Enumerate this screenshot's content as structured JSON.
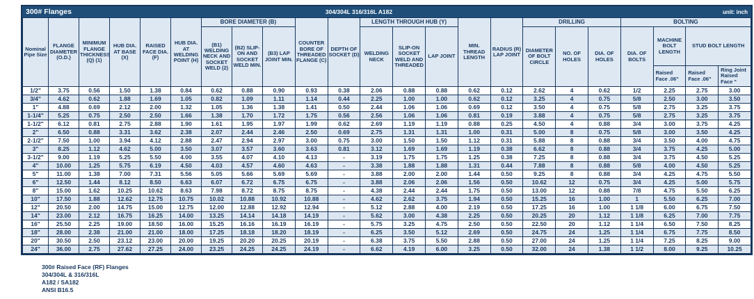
{
  "title_bar": {
    "title": "300# Flanges",
    "material": "304/304L 316/316L A182",
    "unit": "unit: inch"
  },
  "groups": {
    "bore": "BORE DIAMETER (B)",
    "hub": "LENGTH THROUGH HUB (Y)",
    "drilling": "DRILLING",
    "bolting": "BOLTING"
  },
  "columns": {
    "nominal": "Nominal Pipe Size",
    "od": "FLANGE DIAMETER (O.D.)",
    "q": "MINIMUM FLANGE THICKNESS (Q) (1)",
    "x": "HUB DIA. AT BASE (X)",
    "f": "RAISED FACE DIA. (F)",
    "h": "HUB DIA. AT WELDING POINT (H)",
    "b1": "(B1) WELDING NECK AND SOCKET WELD (2)",
    "b2": "(B2) SLIP-ON AND SOCKET WELD MIN.",
    "b3": "(B3) LAP JOINT MIN.",
    "c": "COUNTER BORE OF THREADED FLANGE (C)",
    "d": "DEPTH OF SOCKET (D)",
    "welding_neck": "WELDING NECK",
    "slip_on": "SLIP-ON SOCKET WELD AND THREADED",
    "lap_joint": "LAP JOINT",
    "min_thread": "MIN. THREAD LENGTH",
    "radius": "RADIUS (R) LAP JOINT",
    "bolt_circle": "DIAMETER OF BOLT CIRCLE",
    "no_holes": "NO. OF HOLES",
    "dia_holes": "DIA. OF HOLES",
    "dia_bolts": "DIA. OF BOLTS",
    "machine_bolt_length": "MACHINE BOLT LENGTH",
    "stud_bolt_length": "STUD BOLT LENGTH",
    "mbl_raised_face": "Raised Face .06\"",
    "sbl_raised_face": "Raised Face .06\"",
    "sbl_ring_joint": "Ring Joint Raised Face \""
  },
  "rows": [
    [
      "1/2\"",
      "3.75",
      "0.56",
      "1.50",
      "1.38",
      "0.84",
      "0.62",
      "0.88",
      "0.90",
      "0.93",
      "0.38",
      "2.06",
      "0.88",
      "0.88",
      "0.62",
      "0.12",
      "2.62",
      "4",
      "0.62",
      "1/2",
      "2.25",
      "2.75",
      "3.00"
    ],
    [
      "3/4\"",
      "4.62",
      "0.62",
      "1.88",
      "1.69",
      "1.05",
      "0.82",
      "1.09",
      "1.11",
      "1.14",
      "0.44",
      "2.25",
      "1.00",
      "1.00",
      "0.62",
      "0.12",
      "3.25",
      "4",
      "0.75",
      "5/8",
      "2.50",
      "3.00",
      "3.50"
    ],
    [
      "1\"",
      "4.88",
      "0.69",
      "2.12",
      "2.00",
      "1.32",
      "1.05",
      "1.36",
      "1.38",
      "1.41",
      "0.50",
      "2.44",
      "1.06",
      "1.06",
      "0.69",
      "0.12",
      "3.50",
      "4",
      "0.75",
      "5/8",
      "2.75",
      "3.25",
      "3.75"
    ],
    [
      "1-1/4\"",
      "5.25",
      "0.75",
      "2.50",
      "2.50",
      "1.66",
      "1.38",
      "1.70",
      "1.72",
      "1.75",
      "0.56",
      "2.56",
      "1.06",
      "1.06",
      "0.81",
      "0.19",
      "3.88",
      "4",
      "0.75",
      "5/8",
      "2.75",
      "3.25",
      "3.75"
    ],
    [
      "1-1/2\"",
      "6.12",
      "0.81",
      "2.75",
      "2.88",
      "1.90",
      "1.61",
      "1.95",
      "1.97",
      "1.99",
      "0.62",
      "2.69",
      "1.19",
      "1.19",
      "0.88",
      "0.25",
      "4.50",
      "4",
      "0.88",
      "3/4",
      "3.00",
      "3.75",
      "4.25"
    ],
    [
      "2\"",
      "6.50",
      "0.88",
      "3.31",
      "3.62",
      "2.38",
      "2.07",
      "2.44",
      "2.46",
      "2.50",
      "0.69",
      "2.75",
      "1.31",
      "1.31",
      "1.00",
      "0.31",
      "5.00",
      "8",
      "0.75",
      "5/8",
      "3.00",
      "3.50",
      "4.25"
    ],
    [
      "2-1/2\"",
      "7.50",
      "1.00",
      "3.94",
      "4.12",
      "2.88",
      "2.47",
      "2.94",
      "2.97",
      "3.00",
      "0.75",
      "3.00",
      "1.50",
      "1.50",
      "1.12",
      "0.31",
      "5.88",
      "8",
      "0.88",
      "3/4",
      "3.50",
      "4.00",
      "4.75"
    ],
    [
      "3\"",
      "8.25",
      "1.12",
      "4.62",
      "5.00",
      "3.50",
      "3.07",
      "3.57",
      "3.60",
      "3.63",
      "0.81",
      "3.12",
      "1.69",
      "1.69",
      "1.19",
      "0.38",
      "6.62",
      "8",
      "0.88",
      "3/4",
      "3.75",
      "4.25",
      "5.00"
    ],
    [
      "3-1/2\"",
      "9.00",
      "1.19",
      "5.25",
      "5.50",
      "4.00",
      "3.55",
      "4.07",
      "4.10",
      "4.13",
      "-",
      "3.19",
      "1.75",
      "1.75",
      "1.25",
      "0.38",
      "7.25",
      "8",
      "0.88",
      "3/4",
      "3.75",
      "4.50",
      "5.25"
    ],
    [
      "4\"",
      "10.00",
      "1.25",
      "5.75",
      "6.19",
      "4.50",
      "4.03",
      "4.57",
      "4.60",
      "4.63",
      "-",
      "3.38",
      "1.88",
      "1.88",
      "1.31",
      "0.44",
      "7.88",
      "8",
      "0.88",
      "5/8",
      "4.00",
      "4.50",
      "5.25"
    ],
    [
      "5\"",
      "11.00",
      "1.38",
      "7.00",
      "7.31",
      "5.56",
      "5.05",
      "5.66",
      "5.69",
      "5.69",
      "-",
      "3.88",
      "2.00",
      "2.00",
      "1.44",
      "0.50",
      "9.25",
      "8",
      "0.88",
      "3/4",
      "4.25",
      "4.75",
      "5.50"
    ],
    [
      "6\"",
      "12.50",
      "1.44",
      "8.12",
      "8.50",
      "6.63",
      "6.07",
      "6.72",
      "6.75",
      "6.75",
      "-",
      "3.88",
      "2.06",
      "2.06",
      "1.56",
      "0.50",
      "10.62",
      "12",
      "0.75",
      "3/4",
      "4.25",
      "5.00",
      "5.75"
    ],
    [
      "8\"",
      "15.00",
      "1.62",
      "10.25",
      "10.62",
      "8.63",
      "7.98",
      "8.72",
      "8.75",
      "8.75",
      "-",
      "4.38",
      "2.44",
      "2.44",
      "1.75",
      "0.50",
      "13.00",
      "12",
      "0.88",
      "7/8",
      "4.75",
      "5.50",
      "6.25"
    ],
    [
      "10\"",
      "17.50",
      "1.88",
      "12.62",
      "12.75",
      "10.75",
      "10.02",
      "10.88",
      "10.92",
      "10.88",
      "-",
      "4.62",
      "2.62",
      "3.75",
      "1.94",
      "0.50",
      "15.25",
      "16",
      "1.00",
      "1",
      "5.50",
      "6.25",
      "7.00"
    ],
    [
      "12\"",
      "20.50",
      "2.00",
      "14.75",
      "15.00",
      "12.75",
      "12.00",
      "12.88",
      "12.92",
      "12.94",
      "-",
      "5.12",
      "2.88",
      "4.00",
      "2.19",
      "0.50",
      "17.25",
      "16",
      "1.00",
      "1 1/8",
      "6.00",
      "6.75",
      "7.50"
    ],
    [
      "14\"",
      "23.00",
      "2.12",
      "16.75",
      "16.25",
      "14.00",
      "13.25",
      "14.14",
      "14.18",
      "14.19",
      "-",
      "5.62",
      "3.00",
      "4.38",
      "2.25",
      "0.50",
      "20.25",
      "20",
      "1.12",
      "1 1/8",
      "6.25",
      "7.00",
      "7.75"
    ],
    [
      "16\"",
      "25.50",
      "2.25",
      "19.00",
      "18.50",
      "16.00",
      "15.25",
      "16.16",
      "16.19",
      "16.19",
      "-",
      "5.75",
      "3.25",
      "4.75",
      "2.50",
      "0.50",
      "22.50",
      "20",
      "1.12",
      "1 1/4",
      "6.50",
      "7.50",
      "8.25"
    ],
    [
      "18\"",
      "28.00",
      "2.38",
      "21.00",
      "21.00",
      "18.00",
      "17.25",
      "18.18",
      "18.20",
      "18.19",
      "-",
      "6.25",
      "3.50",
      "5.12",
      "2.69",
      "0.50",
      "24.75",
      "24",
      "1.25",
      "1 1/4",
      "6.75",
      "7.75",
      "8.50"
    ],
    [
      "20\"",
      "30.50",
      "2.50",
      "23.12",
      "23.00",
      "20.00",
      "19.25",
      "20.20",
      "20.25",
      "20.19",
      "-",
      "6.38",
      "3.75",
      "5.50",
      "2.88",
      "0.50",
      "27.00",
      "24",
      "1.25",
      "1 1/4",
      "7.25",
      "8.25",
      "9.00"
    ],
    [
      "24\"",
      "36.00",
      "2.75",
      "27.62",
      "27.25",
      "24.00",
      "23.25",
      "24.25",
      "24.25",
      "24.19",
      "-",
      "6.62",
      "4.19",
      "6.00",
      "3.25",
      "0.50",
      "32.00",
      "24",
      "1.38",
      "1 1/2",
      "8.00",
      "9.25",
      "10.25"
    ]
  ],
  "notes": [
    "300# Raised Face (RF) Flanges",
    "304/304L & 316/316L",
    "A182 / SA182",
    "ANSI B16.5"
  ]
}
